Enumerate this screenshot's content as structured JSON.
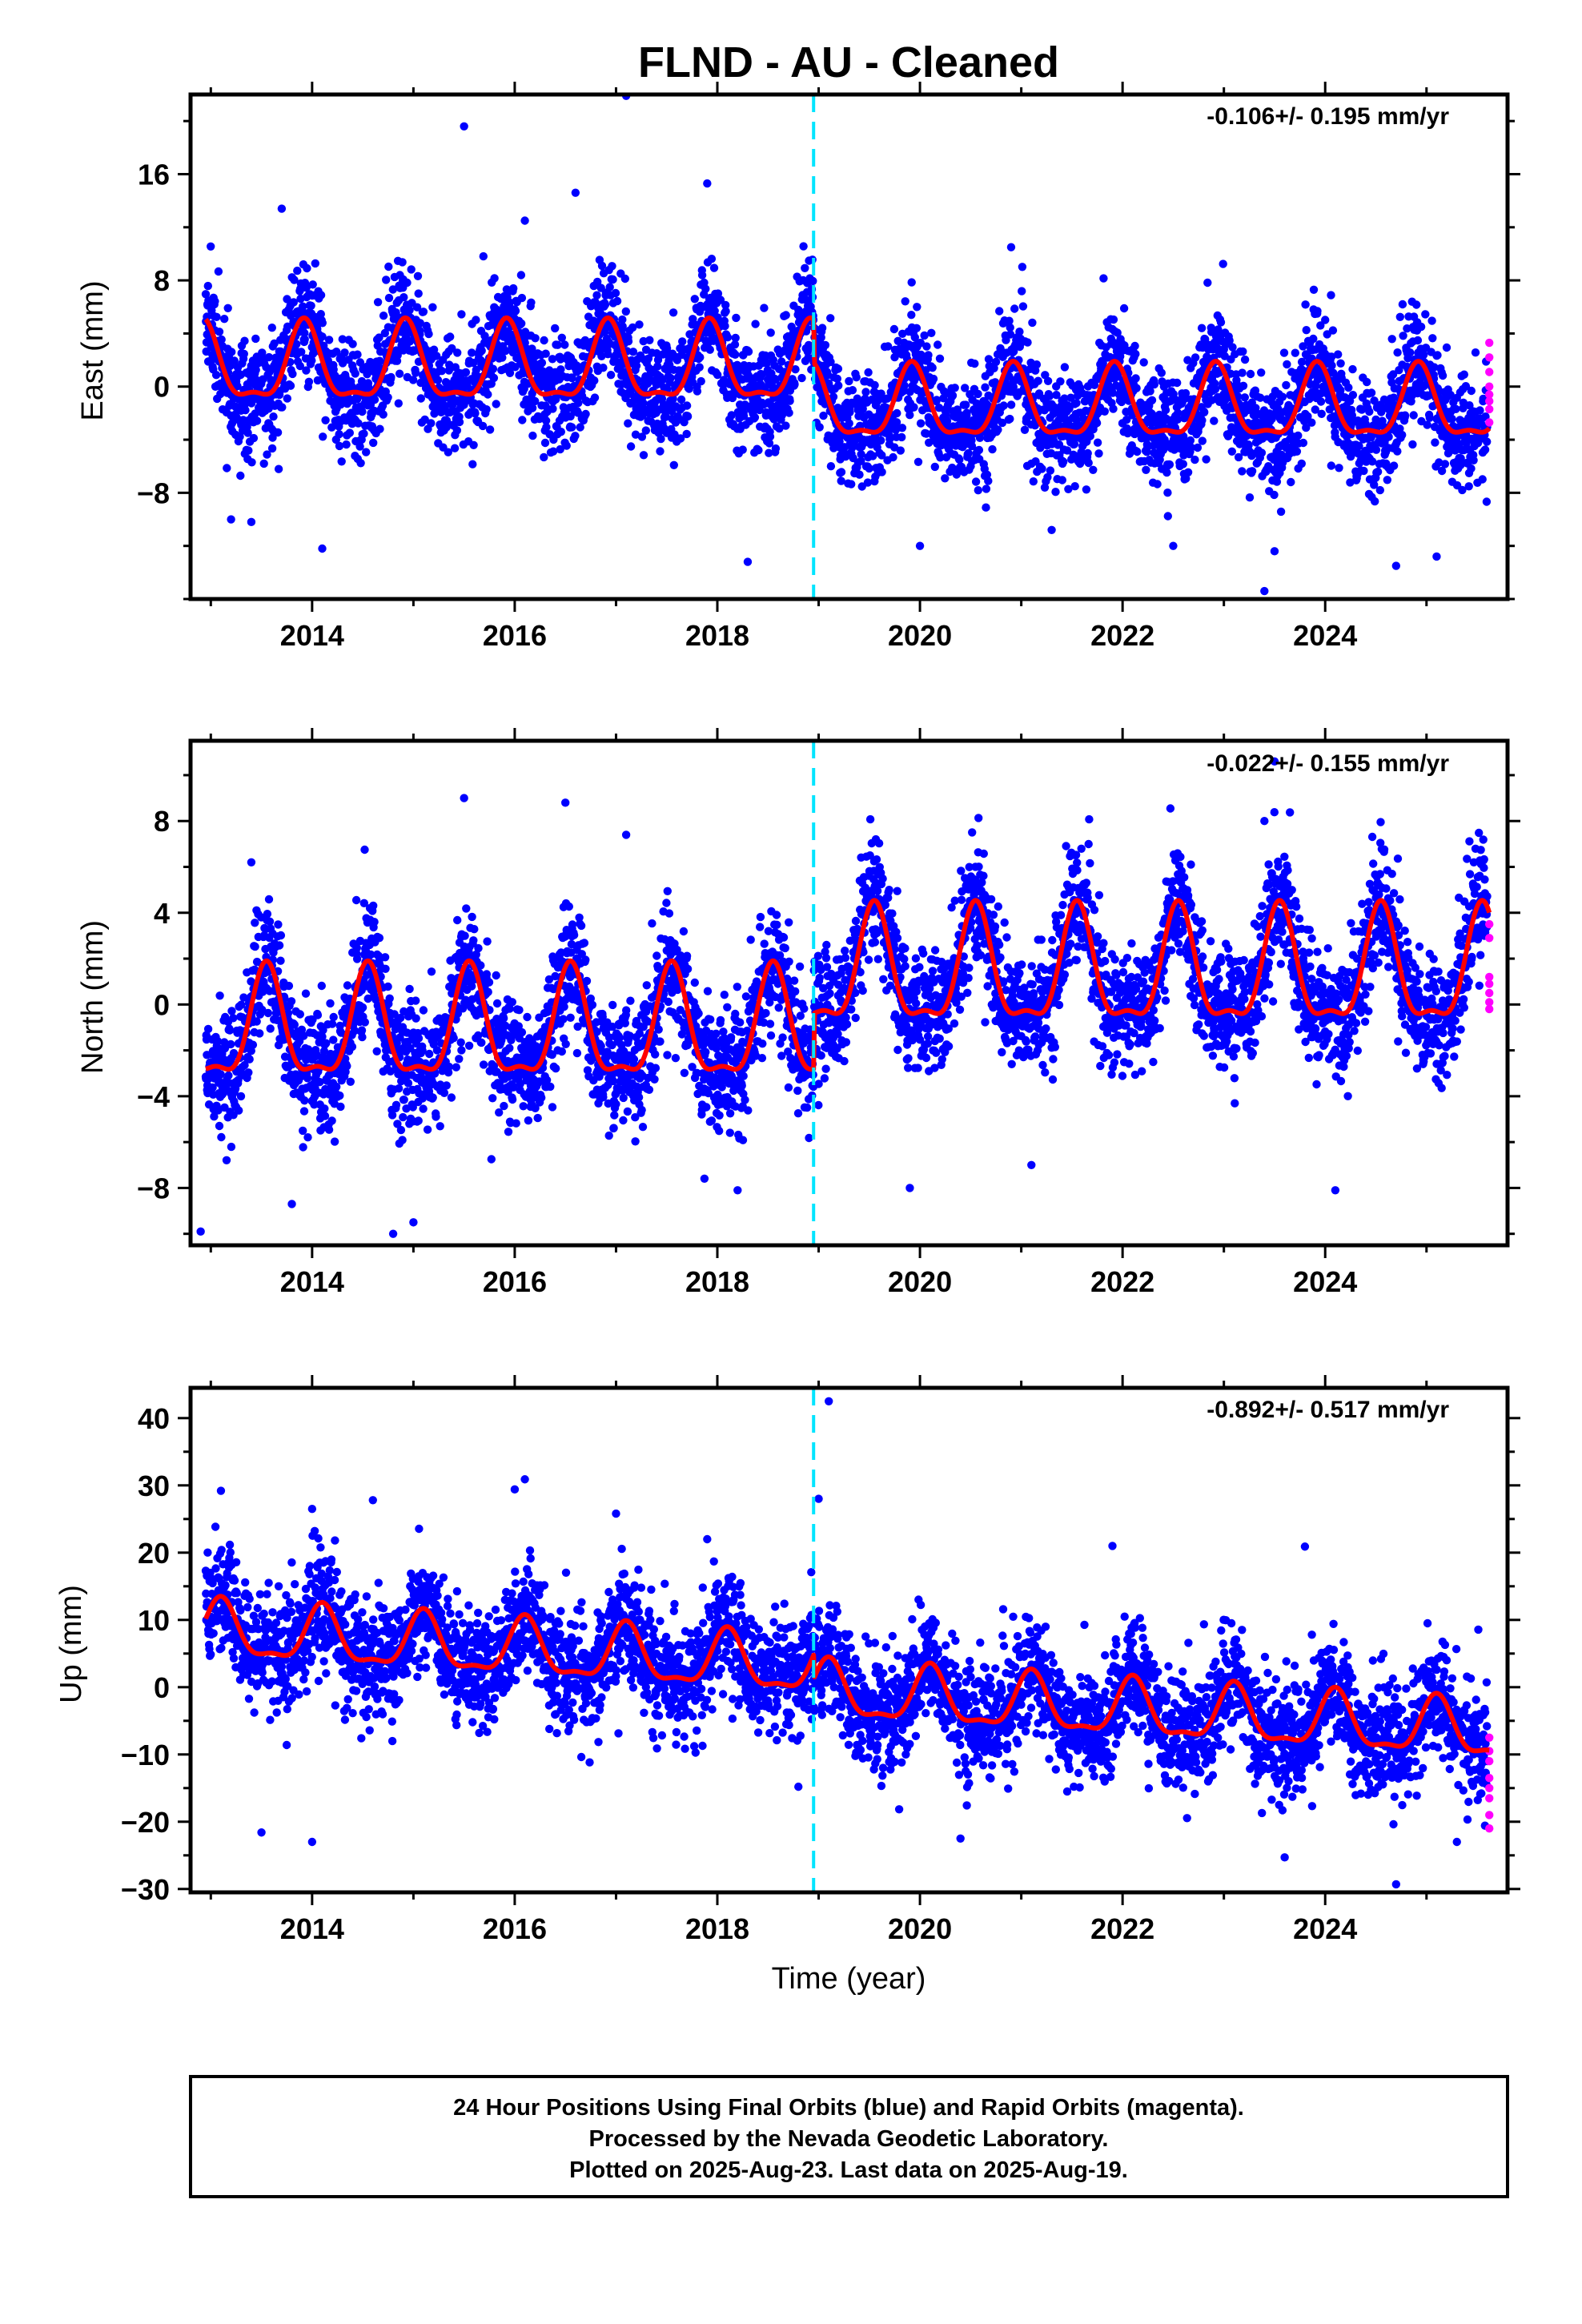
{
  "title": "FLND  - AU - Cleaned",
  "colors": {
    "final_orbits": "#0000ff",
    "rapid_orbits": "#ff00ff",
    "model": "#ff0000",
    "offset_line": "#00e5ff",
    "frame": "#000000"
  },
  "chart_data": [
    {
      "type": "scatter",
      "component": "east",
      "ylabel": "East (mm)",
      "rate_text": "-0.106+/- 0.195 mm/yr",
      "xlim": [
        2012.8,
        2025.8
      ],
      "ylim": [
        -16,
        22
      ],
      "xticks": [
        2014,
        2016,
        2018,
        2020,
        2022,
        2024
      ],
      "yticks": [
        -8,
        0,
        8,
        16
      ],
      "offset_epoch": 2018.95,
      "model": {
        "pre": {
          "mean": 1.4,
          "amp": 2.8,
          "peak_phase": 0.92
        },
        "post": {
          "mean": -1.6,
          "amp": 2.6,
          "peak_phase": 0.92
        }
      },
      "scatter_sd": 2.1,
      "rapid_points": {
        "x": 2025.62,
        "y": [
          3.3,
          2.2,
          1.1,
          0.0,
          -0.6,
          -1.1,
          -1.7,
          -2.7
        ]
      },
      "outliers": [
        {
          "x": 2017.1,
          "y": 21.9
        },
        {
          "x": 2015.5,
          "y": 19.6
        },
        {
          "x": 2016.1,
          "y": 12.5
        },
        {
          "x": 2016.6,
          "y": 14.6
        },
        {
          "x": 2013.7,
          "y": 13.4
        },
        {
          "x": 2017.9,
          "y": 15.3
        },
        {
          "x": 2013.2,
          "y": -10.0
        },
        {
          "x": 2013.4,
          "y": -10.2
        },
        {
          "x": 2014.1,
          "y": -12.2
        },
        {
          "x": 2018.3,
          "y": -13.2
        },
        {
          "x": 2023.4,
          "y": -15.4
        },
        {
          "x": 2023.5,
          "y": -12.4
        },
        {
          "x": 2024.7,
          "y": -13.5
        },
        {
          "x": 2025.1,
          "y": -12.8
        },
        {
          "x": 2020.0,
          "y": -12.0
        },
        {
          "x": 2021.3,
          "y": -10.8
        },
        {
          "x": 2022.5,
          "y": -12.0
        },
        {
          "x": 2020.9,
          "y": 10.5
        }
      ]
    },
    {
      "type": "scatter",
      "component": "north",
      "ylabel": "North (mm)",
      "rate_text": "-0.022+/- 0.155 mm/yr",
      "xlim": [
        2012.8,
        2025.8
      ],
      "ylim": [
        -10.5,
        11.5
      ],
      "xticks": [
        2014,
        2016,
        2018,
        2020,
        2022,
        2024
      ],
      "yticks": [
        -8,
        -4,
        0,
        4,
        8
      ],
      "offset_epoch": 2018.95,
      "model": {
        "pre": {
          "mean": -1.2,
          "amp": 2.3,
          "peak_phase": 0.55
        },
        "post": {
          "mean": 1.3,
          "amp": 2.4,
          "peak_phase": 0.55
        }
      },
      "scatter_sd": 1.3,
      "rapid_points": {
        "x": 2025.62,
        "y": [
          3.5,
          2.9,
          1.2,
          0.9,
          0.5,
          0.1,
          -0.2
        ]
      },
      "outliers": [
        {
          "x": 2015.5,
          "y": 9.0
        },
        {
          "x": 2016.5,
          "y": 8.8
        },
        {
          "x": 2017.1,
          "y": 7.4
        },
        {
          "x": 2013.4,
          "y": 6.2
        },
        {
          "x": 2012.9,
          "y": -9.9
        },
        {
          "x": 2013.8,
          "y": -8.7
        },
        {
          "x": 2014.8,
          "y": -10.0
        },
        {
          "x": 2015.0,
          "y": -9.5
        },
        {
          "x": 2018.2,
          "y": -8.1
        },
        {
          "x": 2019.9,
          "y": -8.0
        },
        {
          "x": 2021.1,
          "y": -7.0
        },
        {
          "x": 2024.1,
          "y": -8.1
        },
        {
          "x": 2023.5,
          "y": 10.6
        },
        {
          "x": 2023.4,
          "y": 8.0
        }
      ]
    },
    {
      "type": "scatter",
      "component": "up",
      "ylabel": "Up (mm)",
      "xlabel": "Time (year)",
      "rate_text": "-0.892+/- 0.517 mm/yr",
      "xlim": [
        2012.8,
        2025.8
      ],
      "ylim": [
        -30.5,
        44.5
      ],
      "xticks": [
        2014,
        2016,
        2018,
        2020,
        2022,
        2024
      ],
      "yticks": [
        -30,
        -20,
        -10,
        0,
        10,
        20,
        30,
        40
      ],
      "offset_epoch": 2018.95,
      "model": {
        "pre": {
          "mean": 2.8,
          "amp": 4.0,
          "peak_phase": 0.1
        },
        "post": {
          "mean": -0.8,
          "amp": 4.0,
          "peak_phase": 0.1
        },
        "trend_per_year": -0.9
      },
      "scatter_sd": 4.2,
      "rapid_points": {
        "x": 2025.62,
        "y": [
          -7.5,
          -9.5,
          -11.0,
          -13.5,
          -15.0,
          -16.5,
          -19.0,
          -21.0
        ]
      },
      "outliers": [
        {
          "x": 2019.1,
          "y": 42.5
        },
        {
          "x": 2016.1,
          "y": 30.9
        },
        {
          "x": 2016.0,
          "y": 29.4
        },
        {
          "x": 2013.1,
          "y": 29.2
        },
        {
          "x": 2019.0,
          "y": 28.0
        },
        {
          "x": 2014.0,
          "y": 26.5
        },
        {
          "x": 2014.6,
          "y": 27.8
        },
        {
          "x": 2017.0,
          "y": 25.8
        },
        {
          "x": 2017.9,
          "y": 22.0
        },
        {
          "x": 2023.8,
          "y": 20.9
        },
        {
          "x": 2021.9,
          "y": 21.0
        },
        {
          "x": 2013.5,
          "y": -21.6
        },
        {
          "x": 2014.0,
          "y": -23.0
        },
        {
          "x": 2023.6,
          "y": -25.3
        },
        {
          "x": 2024.7,
          "y": -29.3
        },
        {
          "x": 2020.4,
          "y": -22.5
        },
        {
          "x": 2025.3,
          "y": -23.0
        },
        {
          "x": 2018.8,
          "y": -14.8
        }
      ]
    }
  ],
  "footer": {
    "line1": "24 Hour Positions Using Final Orbits (blue) and Rapid Orbits (magenta).",
    "line2": "Processed by the Nevada Geodetic Laboratory.",
    "line3": "Plotted on 2025-Aug-23. Last data on 2025-Aug-19."
  }
}
